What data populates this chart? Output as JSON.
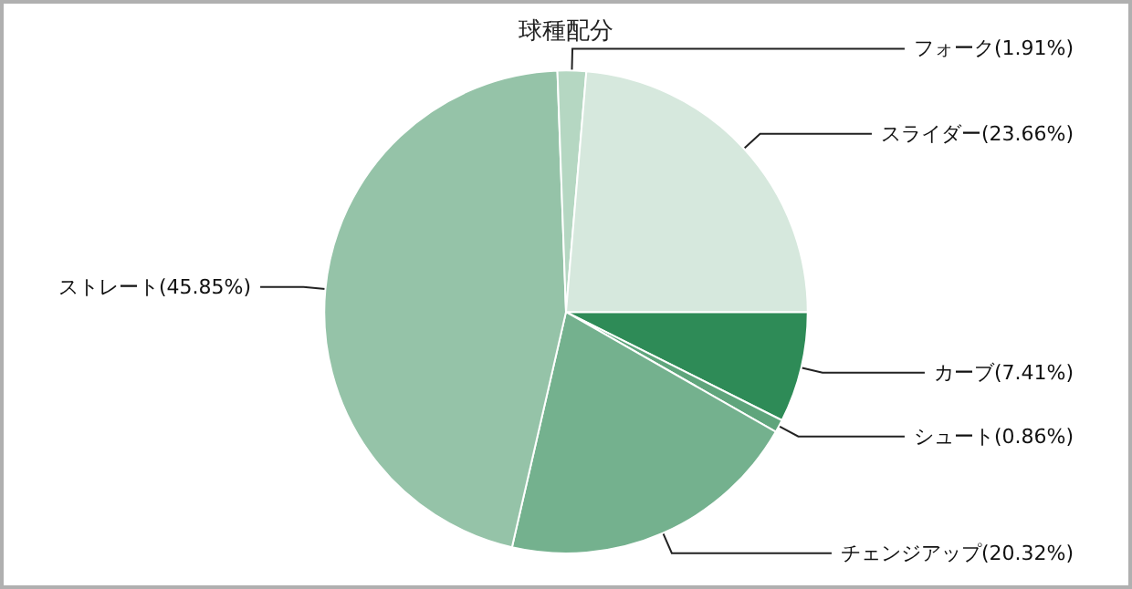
{
  "chart_data": {
    "type": "pie",
    "title": "球種配分",
    "categories": [
      "カーブ",
      "シュート",
      "チェンジアップ",
      "ストレート",
      "フォーク",
      "スライダー"
    ],
    "values": [
      7.41,
      0.86,
      20.32,
      45.85,
      1.91,
      23.66
    ],
    "value_labels": [
      "(7.41%)",
      "(0.86%)",
      "(20.32%)",
      "(45.85%)",
      "(1.91%)",
      "(23.66%)"
    ],
    "colors": [
      "#2e8b57",
      "#5fa57c",
      "#74b18e",
      "#95c3a8",
      "#b5d7c2",
      "#d6e8dd"
    ],
    "legend": false
  }
}
